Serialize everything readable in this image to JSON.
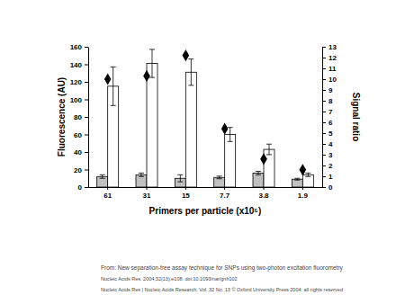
{
  "chart_data": {
    "type": "bar",
    "categories": [
      "61",
      "31",
      "15",
      "7.7",
      "3.8",
      "1.9"
    ],
    "x_label": "Primers per particle (x10⁵)",
    "y_label": "Fluorescence (AU)",
    "y2_label": "Signal ratio",
    "series": [
      {
        "type": "bar",
        "color": "#c0c0c0",
        "values": [
          12,
          14,
          10,
          11,
          16,
          9
        ],
        "errors": [
          2,
          2,
          4,
          1.5,
          2,
          1
        ]
      },
      {
        "type": "bar",
        "color": "#ffffff",
        "values": [
          115,
          141,
          131,
          60,
          43,
          14
        ],
        "errors": [
          22,
          16,
          15,
          8,
          6,
          2
        ]
      },
      {
        "type": "scatter",
        "color": "#000000",
        "marker": "diamond",
        "axis": "y2",
        "values": [
          10,
          10.3,
          12.2,
          5.4,
          2.6,
          1.6
        ]
      }
    ],
    "ylim": [
      0,
      160
    ],
    "yticks": [
      0,
      20,
      40,
      60,
      80,
      100,
      120,
      140,
      160
    ],
    "y2lim": [
      0,
      13
    ],
    "y2ticks": [
      0,
      1,
      2,
      3,
      4,
      5,
      6,
      7,
      8,
      9,
      10,
      11,
      12,
      13
    ],
    "grid": false,
    "annotations": [
      "From: New separation-free assay technique for SNPs using two-photon excitation fluorometry",
      "Nucleic Acids Res. 2004;32(13):e108. doi:10.1093/nar/gnh102",
      "Nucleic Acids Res | Nucleic Acids Research, Vol. 32 No. 13 © Oxford University Press 2004; all rights reserved"
    ]
  }
}
